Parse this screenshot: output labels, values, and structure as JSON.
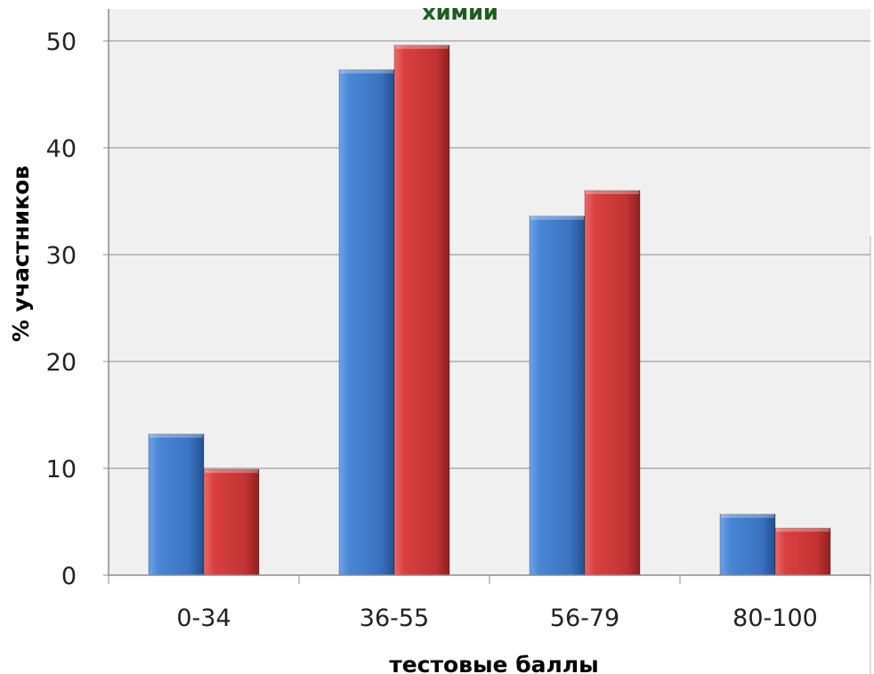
{
  "chart_data": {
    "type": "bar",
    "title": "химии",
    "xlabel": "тестовые баллы",
    "ylabel": "% участников",
    "categories": [
      "0-34",
      "36-55",
      "56-79",
      "80-100"
    ],
    "series": [
      {
        "values": [
          13.2,
          47.3,
          33.6,
          5.7
        ]
      },
      {
        "values": [
          9.9,
          49.6,
          36.0,
          4.4
        ]
      }
    ],
    "ylim": [
      0,
      50
    ],
    "yticks": [
      0,
      10,
      20,
      30,
      40,
      50
    ],
    "grid": true,
    "legend": "none"
  },
  "colors": {
    "series": [
      "#3d78c9",
      "#cf3535"
    ],
    "title": "#1e5c1e",
    "plot_background": "#f0f0f0",
    "gridline": "#8c8c8c"
  }
}
